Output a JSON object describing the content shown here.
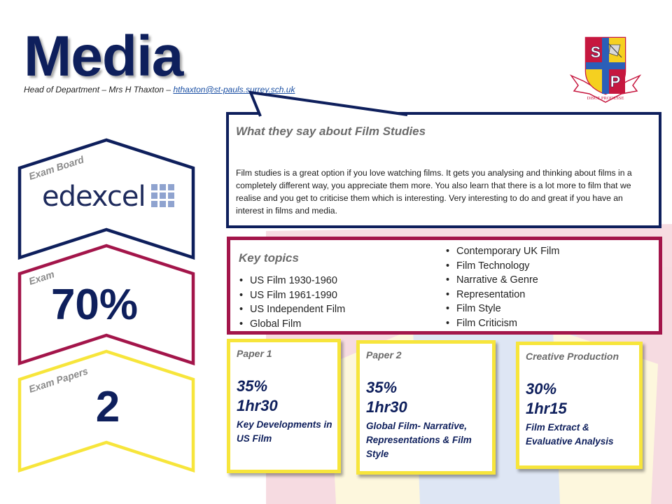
{
  "title": "Media",
  "head_of_department": {
    "prefix": "Head of Department – Mrs H Thaxton – ",
    "email": "hthaxton@st-pauls.surrey.sch.uk"
  },
  "crest": {
    "letter_1": "S",
    "letter_2": "P",
    "motto": "DISCE PRODESSE"
  },
  "exam_board": {
    "label": "Exam Board",
    "name": "edexcel"
  },
  "exam": {
    "label": "Exam",
    "value": "70%"
  },
  "exam_papers": {
    "label": "Exam Papers",
    "value": "2"
  },
  "quote": {
    "title": "What they say about Film Studies",
    "text": "Film studies is a great option if you love watching films. It gets you analysing and thinking about films in a completely different way, you appreciate them more. You also learn that there is a lot more to film that we realise and you get to criticise them which is interesting. Very interesting to do and great if you have an interest in films and media."
  },
  "key_topics": {
    "title": "Key topics",
    "left": [
      "US Film 1930-1960",
      "US Film 1961-1990",
      "US Independent  Film",
      "Global Film"
    ],
    "right": [
      "Contemporary UK Film",
      "Film Technology",
      "Narrative & Genre",
      "Representation",
      "Film Style",
      "Film Criticism"
    ]
  },
  "papers": [
    {
      "title": "Paper 1",
      "percent": "35%",
      "duration": "1hr30",
      "description": "Key Developments in US Film"
    },
    {
      "title": "Paper 2",
      "percent": "35%",
      "duration": "1hr30",
      "description": "Global Film- Narrative, Representations & Film Style"
    },
    {
      "title": "Creative Production",
      "percent": "30%",
      "duration": "1hr15",
      "description": "Film Extract & Evaluative Analysis"
    }
  ],
  "colors": {
    "navy": "#0e1f5c",
    "maroon": "#a3154a",
    "yellow": "#f7e53b",
    "gray_label": "#6b6b6b"
  }
}
